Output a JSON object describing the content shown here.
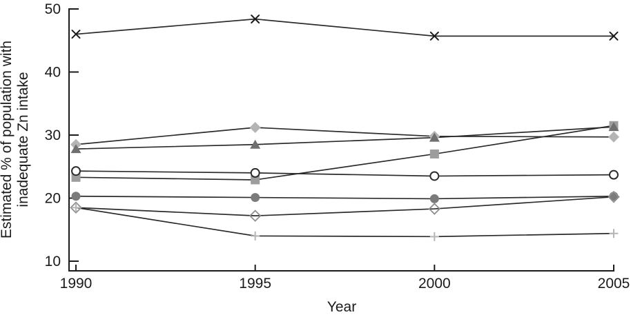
{
  "figure": {
    "xlabel": "Year",
    "ylabel_line1": "Estimated % of population with",
    "ylabel_line2": "inadequate Zn intake"
  },
  "chart_data": {
    "type": "line",
    "title": "",
    "xlabel": "Year",
    "ylabel": "Estimated % of population with inadequate Zn intake",
    "x": [
      1990,
      1995,
      2000,
      2005
    ],
    "x_tick_labels": [
      "1990",
      "1995",
      "2000",
      "2005"
    ],
    "y_ticks": [
      50,
      40,
      30,
      20,
      10
    ],
    "ylim": [
      8.5,
      50
    ],
    "xlim": [
      1989.8,
      2005
    ],
    "grid": false,
    "legend": "none",
    "line_color": "#2b2b2b",
    "axis_color": "#1a1a1a",
    "series": [
      {
        "name": "series-x-cross",
        "marker": "x-cross",
        "marker_color": "#1a1a1a",
        "values": [
          46.0,
          48.4,
          45.7,
          45.7
        ]
      },
      {
        "name": "series-filled-diamond",
        "marker": "diamond-filled",
        "marker_color": "#b4b4b4",
        "values": [
          28.5,
          31.2,
          29.8,
          29.7
        ]
      },
      {
        "name": "series-filled-square",
        "marker": "square-filled",
        "marker_color": "#9d9d9d",
        "values": [
          23.3,
          22.9,
          27.0,
          31.5
        ]
      },
      {
        "name": "series-filled-triangle",
        "marker": "triangle-filled",
        "marker_color": "#6f6f6f",
        "values": [
          27.8,
          28.5,
          29.6,
          31.3
        ]
      },
      {
        "name": "series-open-circle",
        "marker": "circle-open",
        "marker_color": "#2b2b2b",
        "values": [
          24.3,
          24.0,
          23.5,
          23.7
        ]
      },
      {
        "name": "series-filled-circle",
        "marker": "circle-filled",
        "marker_color": "#7b7b7b",
        "values": [
          20.3,
          20.1,
          19.9,
          20.3
        ]
      },
      {
        "name": "series-open-diamond",
        "marker": "diamond-open",
        "marker_color": "#8f8f8f",
        "values": [
          18.5,
          17.2,
          18.3,
          20.2
        ]
      },
      {
        "name": "series-plus",
        "marker": "plus",
        "marker_color": "#b6b6b6",
        "values": [
          18.5,
          14.0,
          13.9,
          14.4
        ]
      }
    ]
  }
}
